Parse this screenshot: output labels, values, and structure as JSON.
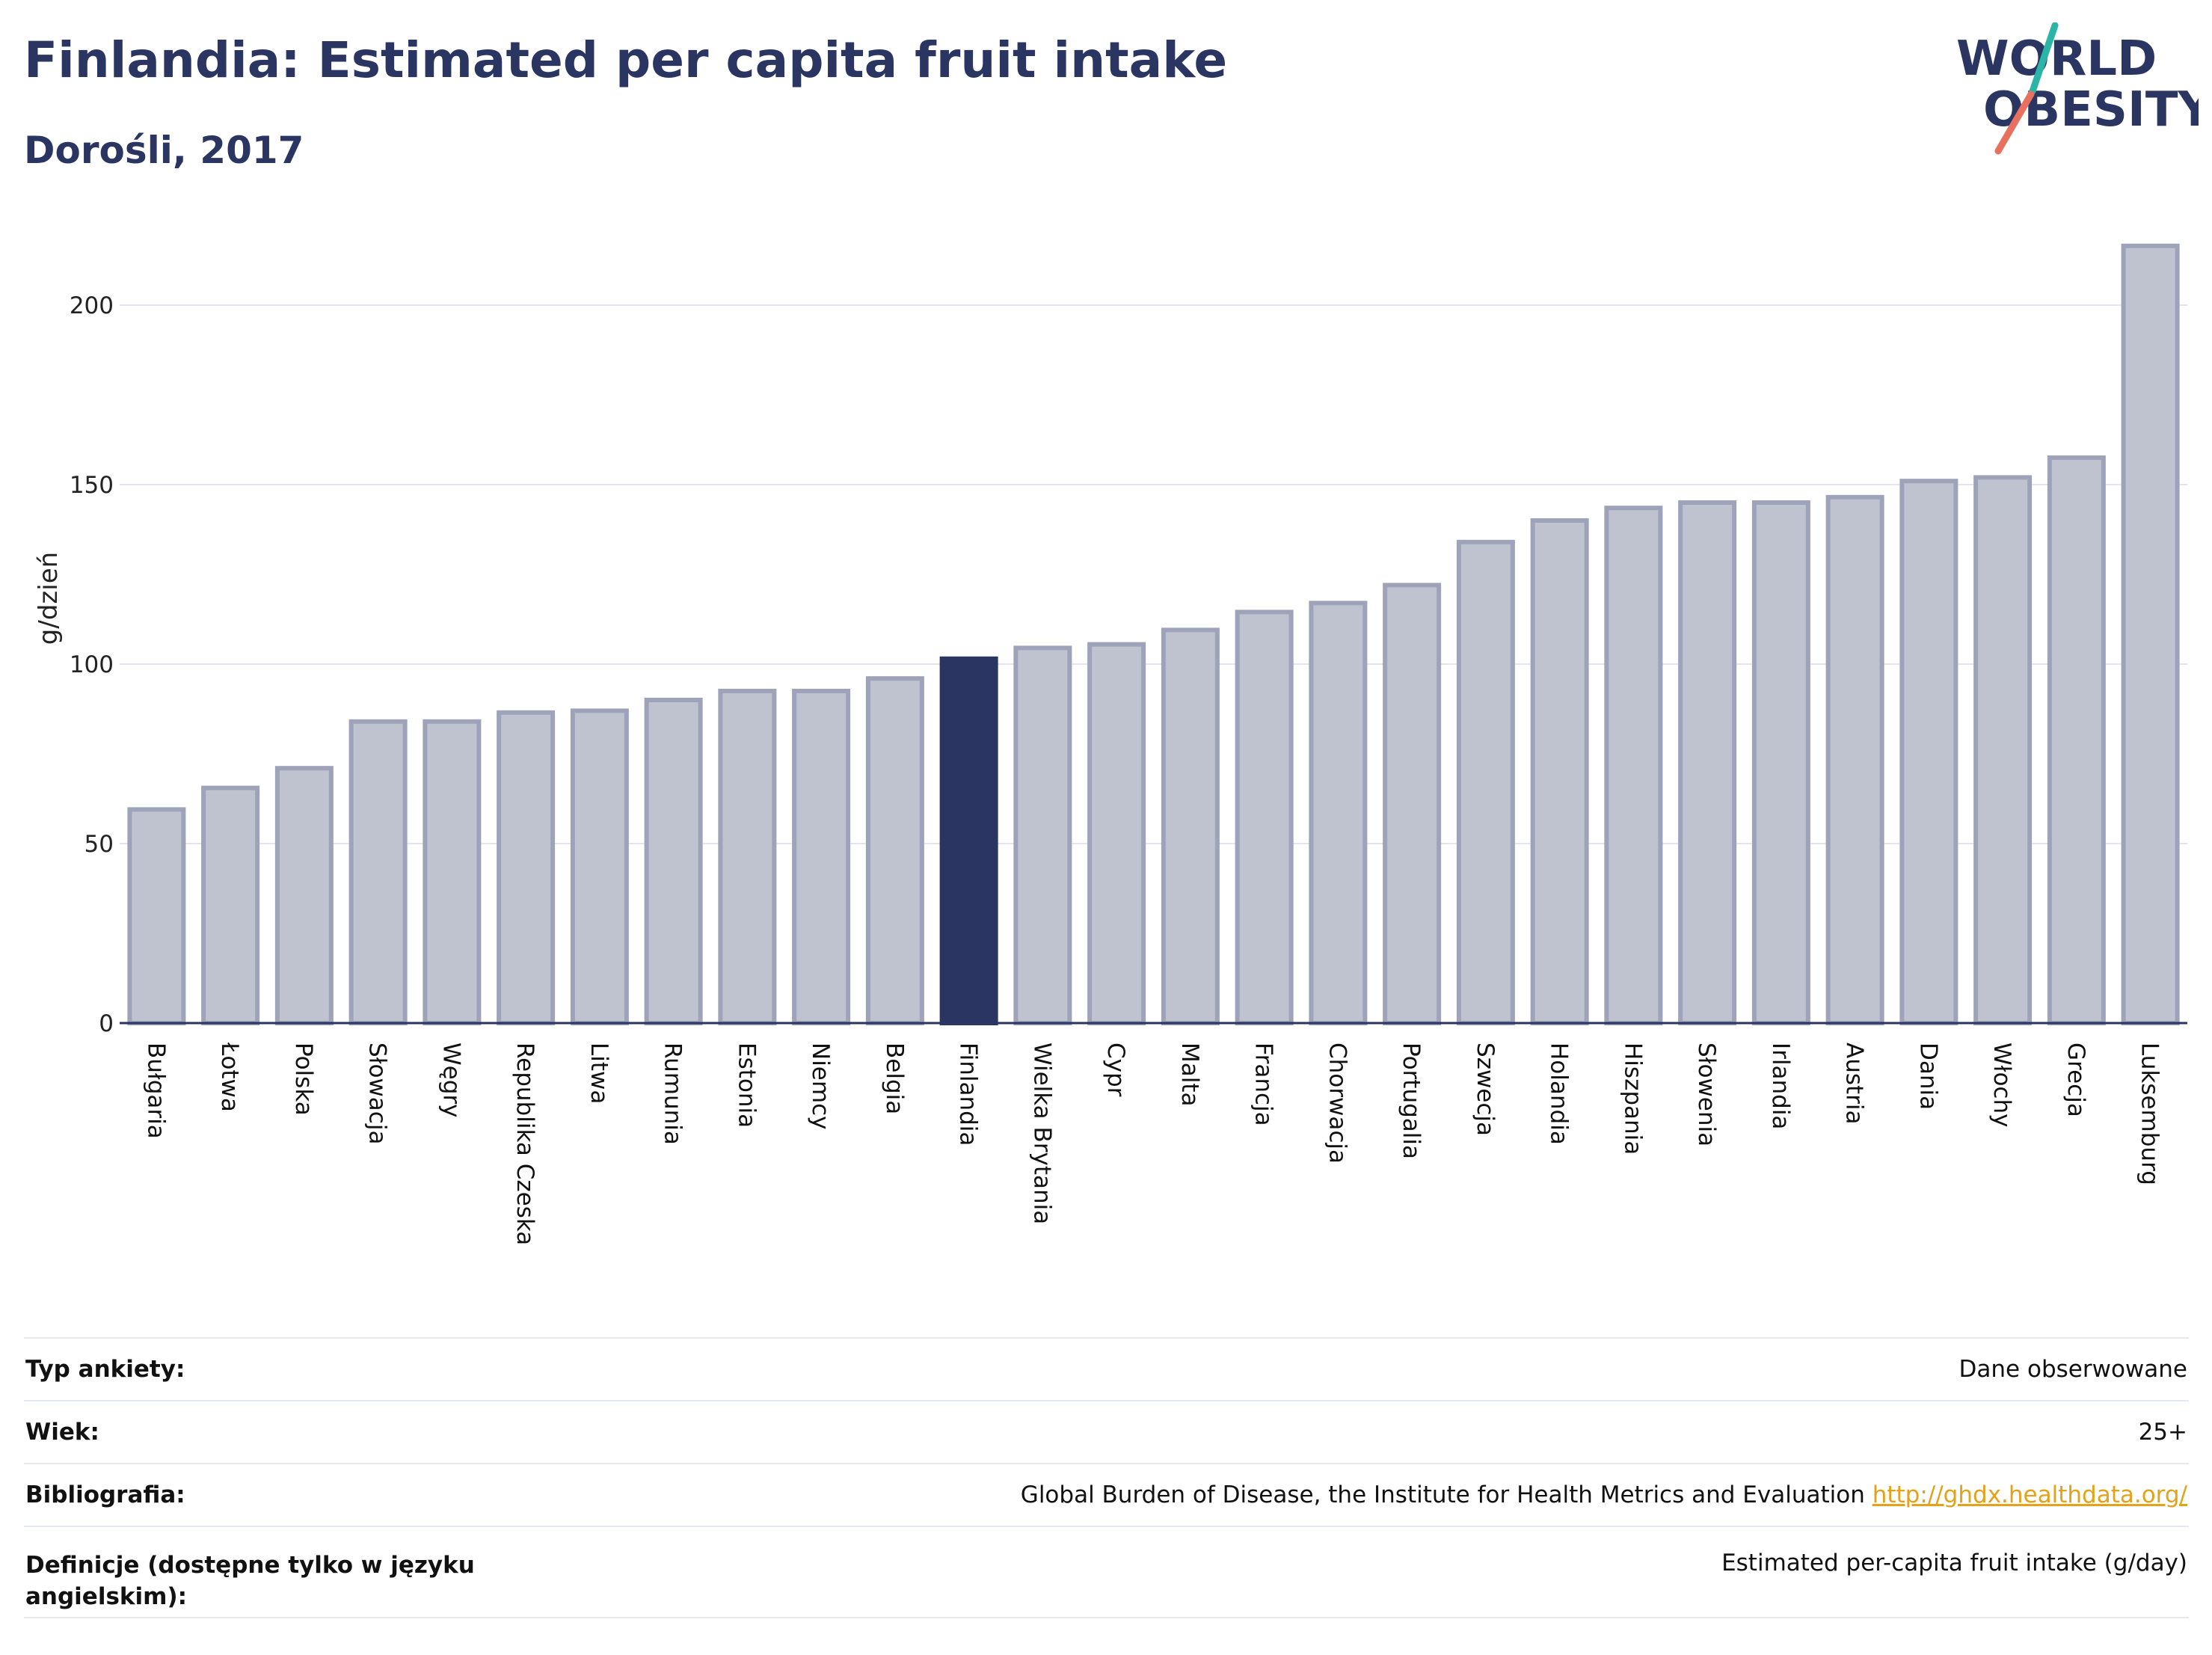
{
  "header": {
    "title": "Finlandia: Estimated per capita fruit intake",
    "subtitle": "Dorośli, 2017"
  },
  "logo": {
    "line1": "WORLD",
    "line2": "OBESITY"
  },
  "colors": {
    "highlight": "#2b3562",
    "bar": "#bfc2cf",
    "bar_border": "#9ea3b9",
    "grid": "#e4e6ee",
    "logo_teal": "#2bb5a6",
    "logo_coral": "#e8705f"
  },
  "chart_data": {
    "type": "bar",
    "ylabel": "g/dzień",
    "ylim": [
      0,
      220
    ],
    "yticks": [
      0,
      50,
      100,
      150,
      200
    ],
    "grid": true,
    "highlight": "Finlandia",
    "categories": [
      "Bułgaria",
      "Łotwa",
      "Polska",
      "Słowacja",
      "Węgry",
      "Republika Czeska",
      "Litwa",
      "Rumunia",
      "Estonia",
      "Niemcy",
      "Belgia",
      "Finlandia",
      "Wielka Brytania",
      "Cypr",
      "Malta",
      "Francja",
      "Chorwacja",
      "Portugalia",
      "Szwecja",
      "Holandia",
      "Hiszpania",
      "Słowenia",
      "Irlandia",
      "Austria",
      "Dania",
      "Włochy",
      "Grecja",
      "Luksemburg"
    ],
    "values": [
      59.5,
      65.5,
      71,
      84,
      84,
      86.5,
      87,
      90,
      92.5,
      92.5,
      96,
      101.5,
      104.5,
      105.5,
      109.5,
      114.5,
      117,
      122,
      134,
      140,
      143.5,
      145,
      145,
      146.5,
      151,
      152,
      157.5,
      216.5
    ]
  },
  "info": [
    {
      "label": "Typ ankiety:",
      "value": "Dane obserwowane"
    },
    {
      "label": "Wiek:",
      "value": "25+"
    },
    {
      "label": "Bibliografia:",
      "value": "Global Burden of Disease, the Institute for Health Metrics and Evaluation",
      "link": "http://ghdx.healthdata.org/"
    },
    {
      "label": "Definicje (dostępne tylko w języku angielskim):",
      "value": "Estimated per-capita fruit intake (g/day)"
    }
  ]
}
